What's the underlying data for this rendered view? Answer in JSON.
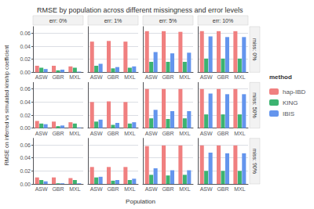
{
  "chart_data": {
    "type": "bar",
    "title": "RMSE by population across different missingness and error levels",
    "xlabel": "Population",
    "ylabel": "RMSE on inferred vs simulated kinship coefficient",
    "legend_title": "method",
    "categories": [
      "ASW",
      "GBR",
      "MXL"
    ],
    "column_labels": [
      "err: 0%",
      "err: 1%",
      "err: 5%",
      "err: 10%"
    ],
    "row_labels": [
      "miss: 0%",
      "miss: 50%",
      "miss: 90%"
    ],
    "series": [
      {
        "name": "hap-IBD",
        "color": "#F08080"
      },
      {
        "name": "KING",
        "color": "#3CB371"
      },
      {
        "name": "IBIS",
        "color": "#6495ED"
      }
    ],
    "panels": [
      [
        [
          [
            0.01,
            0.01,
            0.009
          ],
          [
            0.007,
            0.003,
            0.007
          ],
          [
            0.005,
            0.004,
            0.001
          ]
        ],
        [
          [
            0.047,
            0.048,
            0.047
          ],
          [
            0.01,
            0.006,
            0.007
          ],
          [
            0.013,
            0.008,
            0.009
          ]
        ],
        [
          [
            0.063,
            0.063,
            0.062
          ],
          [
            0.016,
            0.016,
            0.016
          ],
          [
            0.031,
            0.029,
            0.03
          ]
        ],
        [
          [
            0.063,
            0.063,
            0.063
          ],
          [
            0.021,
            0.021,
            0.021
          ],
          [
            0.055,
            0.054,
            0.054
          ]
        ]
      ],
      [
        [
          [
            0.011,
            0.01,
            0.009
          ],
          [
            0.007,
            0.003,
            0.007
          ],
          [
            0.006,
            0.004,
            0.001
          ]
        ],
        [
          [
            0.04,
            0.041,
            0.04
          ],
          [
            0.01,
            0.005,
            0.007
          ],
          [
            0.013,
            0.008,
            0.009
          ]
        ],
        [
          [
            0.06,
            0.06,
            0.06
          ],
          [
            0.015,
            0.014,
            0.015
          ],
          [
            0.028,
            0.026,
            0.026
          ]
        ],
        [
          [
            0.06,
            0.06,
            0.06
          ],
          [
            0.021,
            0.021,
            0.021
          ],
          [
            0.053,
            0.052,
            0.052
          ]
        ]
      ],
      [
        [
          [
            0.01,
            0.01,
            0.009
          ],
          [
            0.006,
            0.001,
            0.006
          ],
          [
            0.004,
            0.001,
            0.001
          ]
        ],
        [
          [
            0.026,
            0.026,
            0.026
          ],
          [
            0.01,
            0.005,
            0.006
          ],
          [
            0.011,
            0.006,
            0.008
          ]
        ],
        [
          [
            0.058,
            0.059,
            0.059
          ],
          [
            0.014,
            0.013,
            0.014
          ],
          [
            0.024,
            0.021,
            0.021
          ]
        ],
        [
          [
            0.059,
            0.059,
            0.059
          ],
          [
            0.02,
            0.02,
            0.02
          ],
          [
            0.048,
            0.047,
            0.047
          ]
        ]
      ]
    ],
    "ylim": [
      0,
      0.07
    ],
    "yticks": [
      {
        "value": 0,
        "label": "0.00"
      },
      0.02,
      0.04,
      0.06
    ],
    "grid": true,
    "legend": "right"
  }
}
